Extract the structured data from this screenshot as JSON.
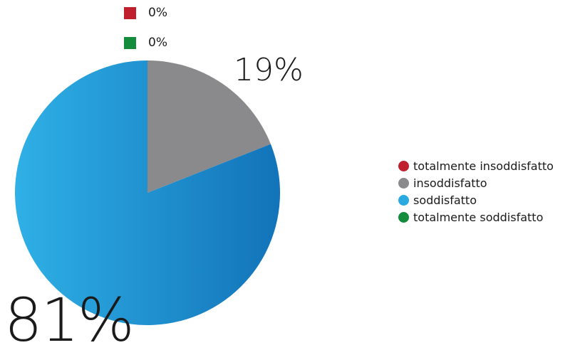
{
  "chart_data": {
    "type": "pie",
    "series": [
      {
        "name": "totalmente insoddisfatto",
        "value": 0,
        "label": "0%",
        "color": "#c01f2e"
      },
      {
        "name": "insoddisfatto",
        "value": 19,
        "label": "19%",
        "color": "#8a8a8c"
      },
      {
        "name": "soddisfatto",
        "value": 81,
        "label": "81%",
        "color": "#29a9e0"
      },
      {
        "name": "totalmente soddisfatto",
        "value": 0,
        "label": "0%",
        "color": "#138c3c"
      }
    ],
    "legend_position": "right",
    "start_angle": "top, clockwise"
  },
  "colors": {
    "soddisfatto_gradient_start": "#2fb0e6",
    "soddisfatto_gradient_end": "#1273b9"
  }
}
